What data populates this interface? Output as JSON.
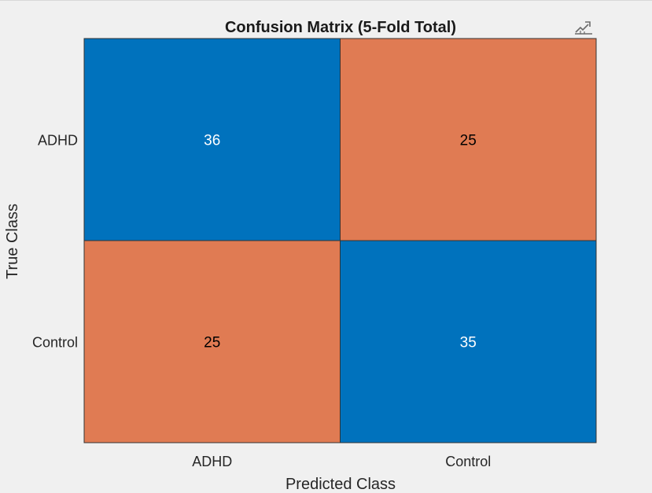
{
  "chart_data": {
    "type": "heatmap",
    "title": "Confusion Matrix (5-Fold Total)",
    "xlabel": "Predicted Class",
    "ylabel": "True Class",
    "x_categories": [
      "ADHD",
      "Control"
    ],
    "y_categories": [
      "ADHD",
      "Control"
    ],
    "matrix": [
      [
        36,
        25
      ],
      [
        25,
        35
      ]
    ],
    "colors": {
      "high": "#0072bd",
      "low": "#e07b53",
      "text_on_high": "#ffffff",
      "text_on_low": "#000000",
      "cell_border": "#333333"
    },
    "colorbar": false,
    "grid": false
  },
  "toolbar": {
    "icon": "export-icon"
  }
}
